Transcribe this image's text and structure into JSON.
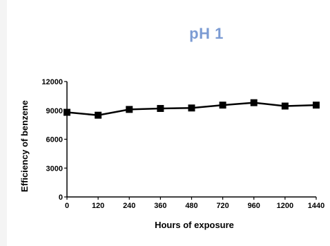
{
  "chart_data": {
    "type": "line",
    "title": "pH 1",
    "xlabel": "Hours of exposure",
    "ylabel": "Efficiency of benzene",
    "categories": [
      "0",
      "120",
      "240",
      "360",
      "480",
      "720",
      "960",
      "1200",
      "1440"
    ],
    "series": [
      {
        "values": [
          8800,
          8500,
          9100,
          9200,
          9250,
          9550,
          9800,
          9450,
          9550
        ],
        "color": "#000000",
        "marker": "square"
      }
    ],
    "yticks": [
      "0",
      "3000",
      "6000",
      "9000",
      "12000"
    ],
    "ylim": [
      0,
      12000
    ],
    "grid": false,
    "legend": "none"
  },
  "colors": {
    "title": "#7b9bd3",
    "line": "#000000",
    "background": "#ffffff"
  }
}
